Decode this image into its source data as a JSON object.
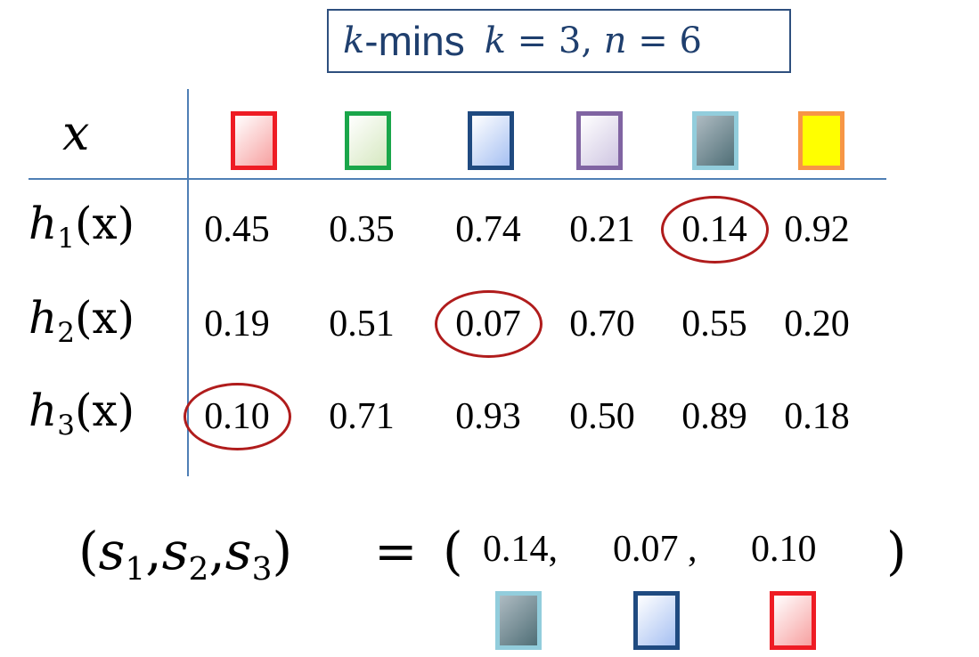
{
  "title": {
    "k": "k",
    "rest": "-mins",
    "formula": "k = 3, n = 6",
    "formula_k": "k",
    "formula_eq1": " = 3, ",
    "formula_n": "n",
    "formula_eq2": " = 6"
  },
  "header_var": "x",
  "columns": [
    {
      "border": "#ee1c24",
      "fill": [
        "#ffffff",
        "#f7a0a0"
      ],
      "icon": "red-square"
    },
    {
      "border": "#1aa64a",
      "fill": [
        "#ffffff",
        "#d6e8c0"
      ],
      "icon": "green-square"
    },
    {
      "border": "#1f4a80",
      "fill": [
        "#ffffff",
        "#a6c0f2"
      ],
      "icon": "blue-square"
    },
    {
      "border": "#8064a2",
      "fill": [
        "#ffffff",
        "#cfc6e2"
      ],
      "icon": "purple-square"
    },
    {
      "border": "#92cddc",
      "fill": [
        "#aebbc2",
        "#4f6e76"
      ],
      "icon": "teal-square"
    },
    {
      "border": "#f79646",
      "fill": [
        "#ffff00",
        "#ffff00"
      ],
      "icon": "yellow-square"
    }
  ],
  "rows": [
    {
      "h": "h",
      "sub": "1",
      "arg": "(x)",
      "values": [
        "0.45",
        "0.35",
        "0.74",
        "0.21",
        "0.14",
        "0.92"
      ],
      "min_index": 4
    },
    {
      "h": "h",
      "sub": "2",
      "arg": "(x)",
      "values": [
        "0.19",
        "0.51",
        "0.07",
        "0.70",
        "0.55",
        "0.20"
      ],
      "min_index": 2
    },
    {
      "h": "h",
      "sub": "3",
      "arg": "(x)",
      "values": [
        "0.10",
        "0.71",
        "0.93",
        "0.50",
        "0.89",
        "0.18"
      ],
      "min_index": 0
    }
  ],
  "result": {
    "lhs_open": "(",
    "s1": "s",
    "s1_sub": "1",
    "s2": "s",
    "s2_sub": "2",
    "s3": "s",
    "s3_sub": "3",
    "lhs_close": ")",
    "equals": "=",
    "rhs_open": "(",
    "v1": "0.14,",
    "v2": "0.07 ,",
    "v3": "0.10",
    "rhs_close": ")",
    "colors": [
      "teal-square",
      "blue-square",
      "red-square"
    ]
  }
}
